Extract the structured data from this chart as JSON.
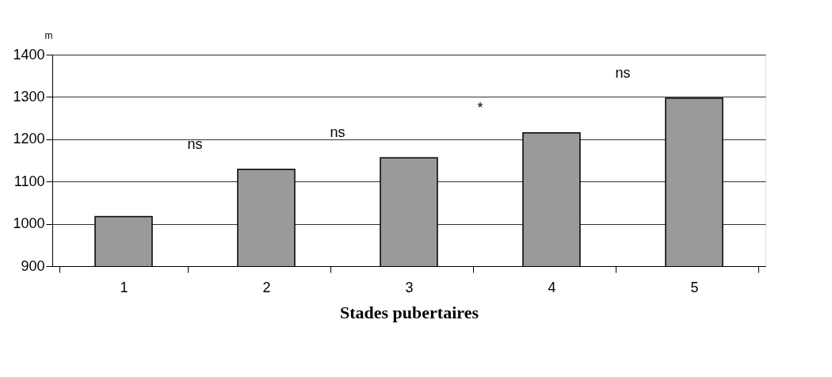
{
  "chart_data": {
    "type": "bar",
    "xlabel": "Stades pubertaires",
    "ylabel": "m",
    "categories": [
      "1",
      "2",
      "3",
      "4",
      "5"
    ],
    "values": [
      1017,
      1129,
      1156,
      1215,
      1297
    ],
    "color": "#9a9a9a",
    "ylim": [
      900,
      1400
    ],
    "yticks": [
      900,
      1000,
      1100,
      1200,
      1300,
      1400
    ],
    "grid": "y",
    "annotations": [
      "ns",
      "ns",
      "*",
      "ns"
    ]
  }
}
